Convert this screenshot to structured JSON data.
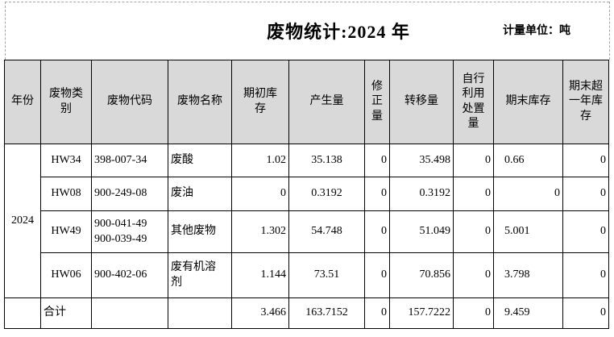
{
  "title": "废物统计:2024 年",
  "unit_label": "计量单位：吨",
  "colors": {
    "header_bg": "#d9d9d9",
    "grid_border": "#000000",
    "page_break_dash": "#a6a6a6",
    "page_bg": "#ffffff"
  },
  "table": {
    "headers": [
      {
        "name": "year",
        "label": "年份"
      },
      {
        "name": "category",
        "label": "废物类\n别"
      },
      {
        "name": "code",
        "label": "废物代码"
      },
      {
        "name": "waste-name",
        "label": "废物名称"
      },
      {
        "name": "opening-stock",
        "label": "期初库\n存"
      },
      {
        "name": "generated",
        "label": "产生量"
      },
      {
        "name": "correction",
        "label": "修\n正\n量"
      },
      {
        "name": "transferred",
        "label": "转移量"
      },
      {
        "name": "self-disposal",
        "label": "自行\n利用\n处置\n量"
      },
      {
        "name": "closing-stock",
        "label": "期末库存"
      },
      {
        "name": "over-one-year-stock",
        "label": "期末超\n一年库\n存"
      }
    ],
    "year_value": "2024",
    "rows": [
      {
        "year": {
          "text": "2024",
          "rowspan": 4
        },
        "cells": [
          {
            "t": "HW34"
          },
          {
            "t": "398-007-34"
          },
          {
            "t": "废酸"
          },
          {
            "t": "1.02"
          },
          {
            "t": "35.138"
          },
          {
            "t": "0"
          },
          {
            "t": "35.498"
          },
          {
            "t": "0"
          },
          {
            "t": "0.66"
          },
          {
            "t": "0"
          }
        ]
      },
      {
        "cells": [
          {
            "t": "HW08"
          },
          {
            "t": "900-249-08"
          },
          {
            "t": "废油"
          },
          {
            "t": "0"
          },
          {
            "t": "0.3192"
          },
          {
            "t": "0"
          },
          {
            "t": "0.3192"
          },
          {
            "t": "0"
          },
          {
            "t": "0",
            "a": "right"
          },
          {
            "t": "0"
          }
        ]
      },
      {
        "cells": [
          {
            "t": "HW49"
          },
          {
            "t": "900-041-49\n900-039-49"
          },
          {
            "t": "其他废物"
          },
          {
            "t": "1.302"
          },
          {
            "t": "54.748"
          },
          {
            "t": "0"
          },
          {
            "t": "51.049"
          },
          {
            "t": "0"
          },
          {
            "t": "5.001"
          },
          {
            "t": "0"
          }
        ]
      },
      {
        "cells": [
          {
            "t": "HW06"
          },
          {
            "t": "900-402-06"
          },
          {
            "t": "废有机溶\n剂"
          },
          {
            "t": "1.144"
          },
          {
            "t": "73.51"
          },
          {
            "t": "0"
          },
          {
            "t": "70.856"
          },
          {
            "t": "0"
          },
          {
            "t": "3.798"
          },
          {
            "t": "0"
          }
        ]
      },
      {
        "cells": [
          {
            "t": ""
          },
          {
            "t": "合计",
            "a": "left"
          },
          {
            "t": ""
          },
          {
            "t": ""
          },
          {
            "t": "3.466"
          },
          {
            "t": "163.7152"
          },
          {
            "t": "0"
          },
          {
            "t": "157.7222"
          },
          {
            "t": "0"
          },
          {
            "t": "9.459"
          },
          {
            "t": "0"
          }
        ]
      }
    ]
  }
}
